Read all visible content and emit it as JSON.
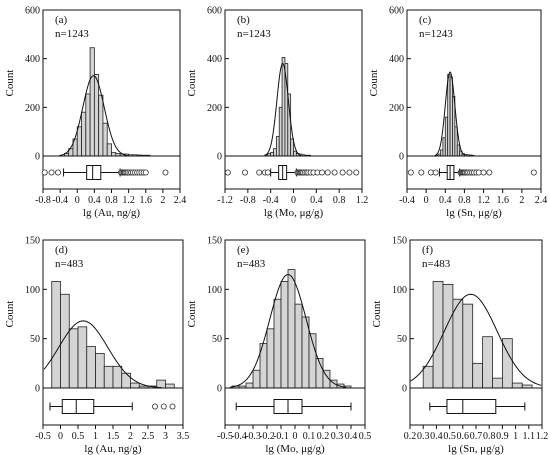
{
  "chart_data": [
    {
      "type": "histogram",
      "panel_label": "(a)",
      "n_label": "n=1243",
      "xlabel": "lg (Au, ng/g)",
      "ylabel": "Count",
      "xlim": [
        -0.8,
        2.4
      ],
      "ylim": [
        0,
        600
      ],
      "xticks": [
        -0.8,
        -0.4,
        0,
        0.4,
        0.8,
        1.2,
        1.6,
        2,
        2.4
      ],
      "xtick_labels": [
        "-0.8",
        "-0.4",
        "0",
        "0.4",
        "0.8",
        "1.2",
        "1.6",
        "2",
        "2.4"
      ],
      "yticks": [
        0,
        200,
        400,
        600
      ],
      "ytick_labels": [
        "0",
        "200",
        "400",
        "600"
      ],
      "bin_edges": [
        -0.3,
        -0.2,
        -0.1,
        0,
        0.1,
        0.2,
        0.3,
        0.4,
        0.5,
        0.6,
        0.7,
        0.8,
        0.9,
        1.0,
        1.1,
        1.2,
        1.3,
        1.4,
        1.5,
        1.6,
        1.7
      ],
      "counts": [
        10,
        30,
        70,
        120,
        180,
        255,
        445,
        335,
        250,
        135,
        50,
        15,
        10,
        8,
        8,
        5,
        5,
        4,
        3,
        3
      ],
      "normal_fit": {
        "mean": 0.38,
        "sd": 0.25,
        "peak": 330
      },
      "boxplot": {
        "whisker_low": -0.32,
        "q1": 0.22,
        "median": 0.36,
        "q3": 0.55,
        "whisker_high": 1.0,
        "outliers": [
          -0.76,
          -0.6,
          -0.45,
          1.02,
          1.05,
          1.08,
          1.1,
          1.12,
          1.15,
          1.18,
          1.22,
          1.26,
          1.3,
          1.35,
          1.4,
          1.45,
          1.5,
          1.55,
          1.6,
          2.06
        ]
      }
    },
    {
      "type": "histogram",
      "panel_label": "(b)",
      "n_label": "n=1243",
      "xlabel": "lg (Mo, μg/g)",
      "ylabel": "Count",
      "xlim": [
        -1.2,
        1.2
      ],
      "ylim": [
        0,
        600
      ],
      "xticks": [
        -1.2,
        -0.8,
        -0.4,
        0,
        0.4,
        0.8,
        1.2
      ],
      "xtick_labels": [
        "-1.2",
        "-0.8",
        "-0.4",
        "0",
        "0.4",
        "0.8",
        "1.2"
      ],
      "yticks": [
        0,
        200,
        400,
        600
      ],
      "ytick_labels": [
        "0",
        "200",
        "400",
        "600"
      ],
      "bin_edges": [
        -0.5,
        -0.45,
        -0.4,
        -0.35,
        -0.3,
        -0.25,
        -0.2,
        -0.15,
        -0.1,
        -0.05,
        0,
        0.05,
        0.1,
        0.15,
        0.2,
        0.25,
        0.3
      ],
      "counts": [
        5,
        10,
        15,
        30,
        80,
        200,
        405,
        380,
        255,
        70,
        20,
        10,
        8,
        5,
        3,
        3
      ],
      "normal_fit": {
        "mean": -0.19,
        "sd": 0.1,
        "peak": 380
      },
      "boxplot": {
        "whisker_low": -0.4,
        "q1": -0.26,
        "median": -0.19,
        "q3": -0.12,
        "whisker_high": 0.05,
        "outliers": [
          -1.15,
          -0.85,
          -0.6,
          -0.5,
          -0.45,
          0.07,
          0.09,
          0.11,
          0.13,
          0.15,
          0.17,
          0.2,
          0.23,
          0.26,
          0.3,
          0.35,
          0.42,
          0.5,
          0.6,
          0.72,
          0.86,
          0.98,
          1.1
        ]
      }
    },
    {
      "type": "histogram",
      "panel_label": "(c)",
      "n_label": "n=1243",
      "xlabel": "lg (Sn, μg/g)",
      "ylabel": "Count",
      "xlim": [
        -0.4,
        2.4
      ],
      "ylim": [
        0,
        600
      ],
      "xticks": [
        -0.4,
        0,
        0.4,
        0.8,
        1.2,
        1.6,
        2,
        2.4
      ],
      "xtick_labels": [
        "-0.4",
        "0",
        "0.4",
        "0.8",
        "1.2",
        "1.6",
        "2",
        "2.4"
      ],
      "yticks": [
        0,
        200,
        400,
        600
      ],
      "ytick_labels": [
        "0",
        "200",
        "400",
        "600"
      ],
      "bin_edges": [
        0.2,
        0.25,
        0.3,
        0.35,
        0.4,
        0.45,
        0.5,
        0.55,
        0.6,
        0.65,
        0.7,
        0.75,
        0.8,
        0.85,
        0.9,
        0.95,
        1.0
      ],
      "counts": [
        3,
        8,
        25,
        75,
        160,
        335,
        325,
        245,
        120,
        45,
        20,
        10,
        6,
        5,
        4,
        3
      ],
      "normal_fit": {
        "mean": 0.5,
        "sd": 0.1,
        "peak": 345
      },
      "boxplot": {
        "whisker_low": 0.28,
        "q1": 0.44,
        "median": 0.5,
        "q3": 0.58,
        "whisker_high": 0.7,
        "outliers": [
          -0.32,
          -0.1,
          0.1,
          0.2,
          0.72,
          0.74,
          0.76,
          0.78,
          0.8,
          0.82,
          0.85,
          0.88,
          0.92,
          0.96,
          1.0,
          1.05,
          1.1,
          1.2,
          1.32,
          2.25
        ]
      }
    },
    {
      "type": "histogram",
      "panel_label": "(d)",
      "n_label": "n=483",
      "xlabel": "lg (Au, ng/g)",
      "ylabel": "Count",
      "xlim": [
        -0.5,
        3.5
      ],
      "ylim": [
        0,
        150
      ],
      "xticks": [
        -0.5,
        0,
        0.5,
        1,
        1.5,
        2,
        2.5,
        3,
        3.5
      ],
      "xtick_labels": [
        "-0.5",
        "0",
        "0.5",
        "1",
        "1.5",
        "2",
        "2.5",
        "3",
        "3.5"
      ],
      "yticks": [
        0,
        50,
        100,
        150
      ],
      "ytick_labels": [
        "0",
        "50",
        "100",
        "150"
      ],
      "bin_edges": [
        -0.25,
        0,
        0.25,
        0.5,
        0.75,
        1.0,
        1.25,
        1.5,
        1.75,
        2.0,
        2.25,
        2.5,
        2.75,
        3.0,
        3.25
      ],
      "counts": [
        108,
        95,
        60,
        62,
        42,
        35,
        22,
        22,
        15,
        5,
        2,
        2,
        8,
        4
      ],
      "normal_fit": {
        "mean": 0.65,
        "sd": 0.7,
        "peak": 68
      },
      "boxplot": {
        "whisker_low": -0.3,
        "q1": 0.05,
        "median": 0.45,
        "q3": 0.95,
        "whisker_high": 2.05,
        "outliers": [
          2.7,
          2.95,
          3.2
        ]
      }
    },
    {
      "type": "histogram",
      "panel_label": "(e)",
      "n_label": "n=483",
      "xlabel": "lg (Mo, μg/g)",
      "ylabel": "Count",
      "xlim": [
        -0.5,
        0.5
      ],
      "ylim": [
        0,
        150
      ],
      "xticks": [
        -0.5,
        -0.4,
        -0.3,
        -0.2,
        -0.1,
        0,
        0.1,
        0.2,
        0.3,
        0.4,
        0.5
      ],
      "xtick_labels": [
        "-0.5",
        "-0.4",
        "-0.3",
        "-0.2",
        "-0.1",
        "0",
        "0.1",
        "0.2",
        "0.3",
        "0.4",
        "0.5"
      ],
      "yticks": [
        0,
        50,
        100,
        150
      ],
      "ytick_labels": [
        "0",
        "50",
        "100",
        "150"
      ],
      "bin_edges": [
        -0.45,
        -0.4,
        -0.35,
        -0.3,
        -0.25,
        -0.2,
        -0.15,
        -0.1,
        -0.05,
        0,
        0.05,
        0.1,
        0.15,
        0.2,
        0.25,
        0.3,
        0.35,
        0.4
      ],
      "counts": [
        2,
        2,
        5,
        18,
        45,
        60,
        90,
        108,
        120,
        85,
        72,
        55,
        30,
        18,
        8,
        4,
        2
      ],
      "normal_fit": {
        "mean": -0.05,
        "sd": 0.13,
        "peak": 115
      },
      "boxplot": {
        "whisker_low": -0.42,
        "q1": -0.15,
        "median": -0.05,
        "q3": 0.05,
        "whisker_high": 0.4,
        "outliers": []
      }
    },
    {
      "type": "histogram",
      "panel_label": "(f)",
      "n_label": "n=483",
      "xlabel": "lg (Sn, μg/g)",
      "ylabel": "Count",
      "xlim": [
        0.2,
        1.2
      ],
      "ylim": [
        0,
        150
      ],
      "xticks": [
        0.2,
        0.3,
        0.4,
        0.5,
        0.6,
        0.7,
        0.8,
        0.9,
        1,
        1.1,
        1.2
      ],
      "xtick_labels": [
        "0.2",
        "0.3",
        "0.4",
        "0.5",
        "0.6",
        "0.7",
        "0.8",
        "0.9",
        "1",
        "1.1",
        "1.2"
      ],
      "yticks": [
        0,
        50,
        100,
        150
      ],
      "ytick_labels": [
        "0",
        "50",
        "100",
        "150"
      ],
      "bin_edges": [
        0.3,
        0.375,
        0.45,
        0.525,
        0.6,
        0.675,
        0.75,
        0.825,
        0.9,
        0.975,
        1.05,
        1.125
      ],
      "counts": [
        22,
        108,
        105,
        90,
        85,
        25,
        52,
        10,
        50,
        5,
        3
      ],
      "normal_fit": {
        "mean": 0.66,
        "sd": 0.2,
        "peak": 95
      },
      "boxplot": {
        "whisker_low": 0.35,
        "q1": 0.48,
        "median": 0.6,
        "q3": 0.85,
        "whisker_high": 1.07,
        "outliers": []
      }
    }
  ]
}
